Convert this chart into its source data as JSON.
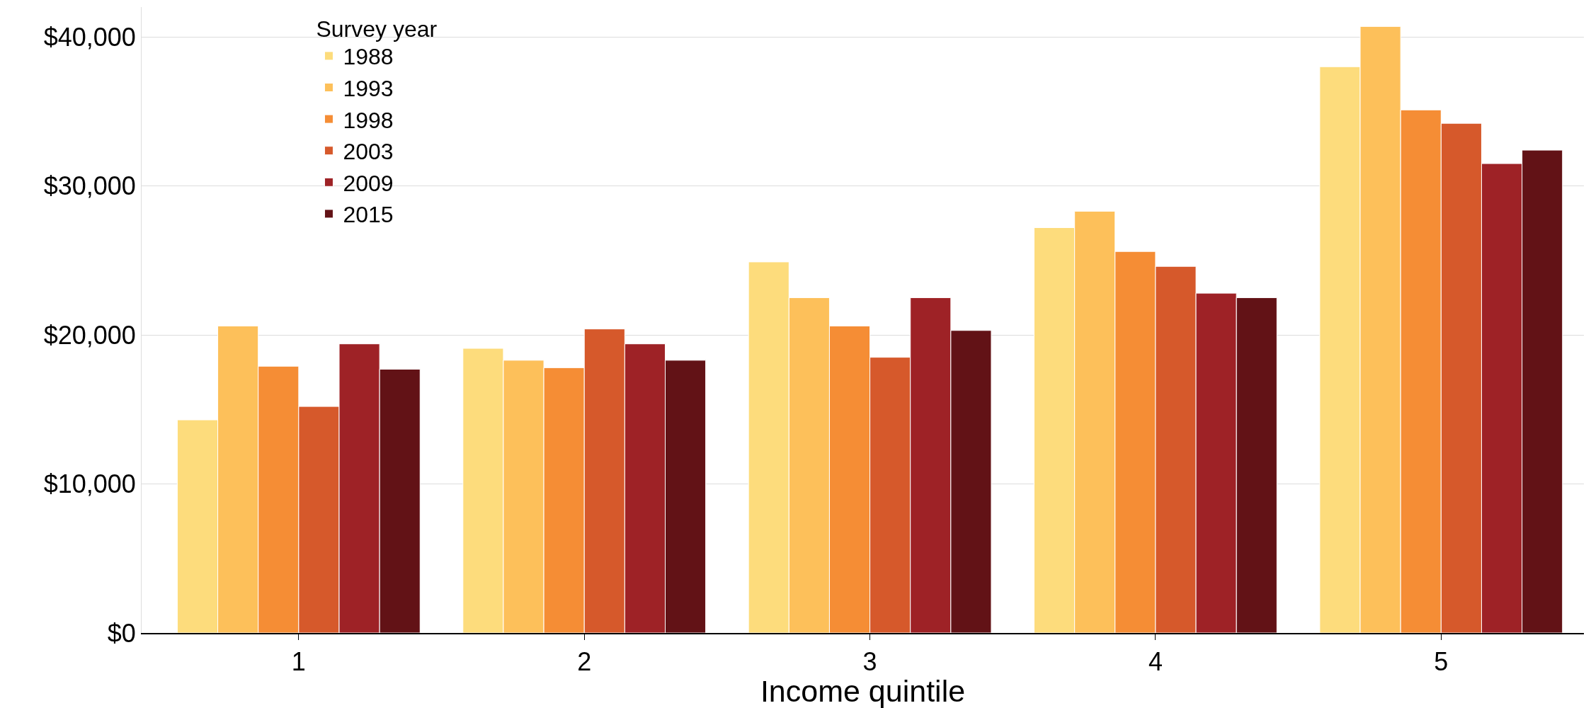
{
  "chart_data": {
    "type": "bar",
    "xlabel": "Income quintile",
    "legend_title": "Survey year",
    "categories": [
      "1",
      "2",
      "3",
      "4",
      "5"
    ],
    "series": [
      {
        "name": "1988",
        "color": "#fddc7c",
        "values": [
          14300,
          19100,
          24900,
          27200,
          38000
        ]
      },
      {
        "name": "1993",
        "color": "#fdc05a",
        "values": [
          20600,
          18300,
          22500,
          28300,
          40700
        ]
      },
      {
        "name": "1998",
        "color": "#f58d35",
        "values": [
          17900,
          17800,
          20600,
          25600,
          35100
        ]
      },
      {
        "name": "2003",
        "color": "#d6592b",
        "values": [
          15200,
          20400,
          18500,
          24600,
          34200
        ]
      },
      {
        "name": "2009",
        "color": "#9e2226",
        "values": [
          19400,
          19400,
          22500,
          22800,
          31500
        ]
      },
      {
        "name": "2015",
        "color": "#621216",
        "values": [
          17700,
          18300,
          20300,
          22500,
          32400
        ]
      }
    ],
    "ylim": [
      0,
      42000
    ],
    "yticks": [
      {
        "value": 0,
        "label": "$0"
      },
      {
        "value": 10000,
        "label": "$10,000"
      },
      {
        "value": 20000,
        "label": "$20,000"
      },
      {
        "value": 30000,
        "label": "$30,000"
      },
      {
        "value": 40000,
        "label": "$40,000"
      }
    ],
    "grid": "y",
    "legend": "top left"
  }
}
